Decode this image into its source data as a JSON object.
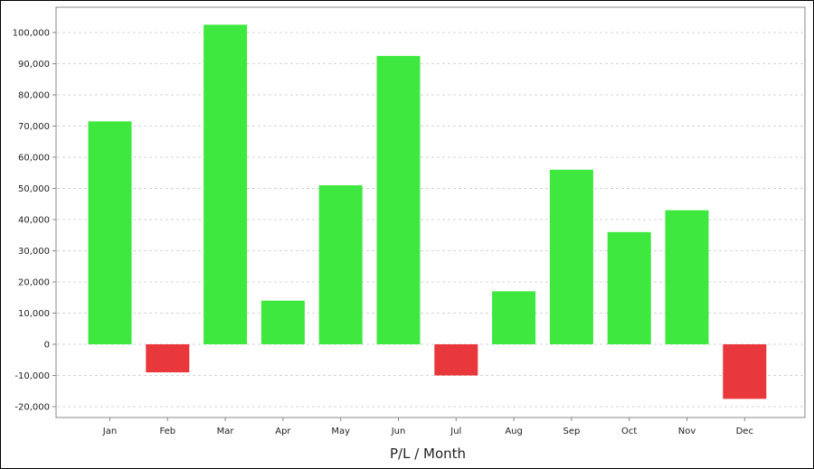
{
  "chart_data": {
    "type": "bar",
    "xlabel": "P/L / Month",
    "ylabel": "",
    "categories": [
      "Jan",
      "Feb",
      "Mar",
      "Apr",
      "May",
      "Jun",
      "Jul",
      "Aug",
      "Sep",
      "Oct",
      "Nov",
      "Dec"
    ],
    "values": [
      71500,
      -9000,
      102500,
      14000,
      51000,
      92500,
      -10000,
      17000,
      56000,
      36000,
      43000,
      -17500
    ],
    "ylim": [
      -22000,
      108000
    ],
    "yticks": [
      -20000,
      -10000,
      0,
      10000,
      20000,
      30000,
      40000,
      50000,
      60000,
      70000,
      80000,
      90000,
      100000
    ],
    "ytick_labels": [
      "-20,000",
      "-10,000",
      "0",
      "10,000",
      "20,000",
      "30,000",
      "40,000",
      "50,000",
      "60,000",
      "70,000",
      "80,000",
      "90,000",
      "100,000"
    ],
    "grid": true,
    "colors": {
      "positive": "#3fe83f",
      "negative": "#e8383c",
      "grid": "#d4d4d4",
      "axis": "#888888"
    }
  }
}
